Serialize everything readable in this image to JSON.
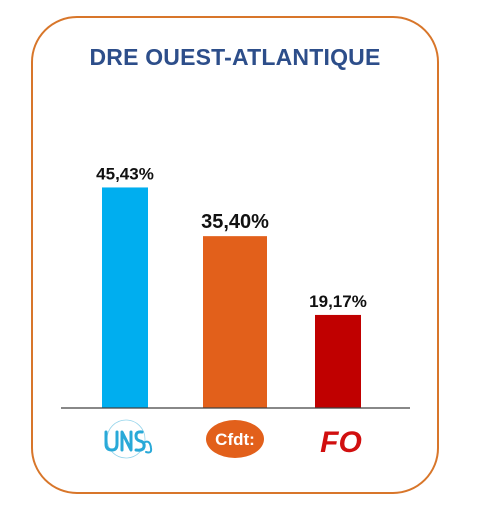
{
  "chart_data": {
    "type": "bar",
    "title": "DRE OUEST-ATLANTIQUE",
    "categories": [
      "UNSA",
      "CFDT",
      "FO"
    ],
    "values": [
      45.43,
      35.4,
      19.17
    ],
    "value_labels": [
      "45,43%",
      "35,40%",
      "19,17%"
    ],
    "colors": [
      "#00aeef",
      "#e2601b",
      "#c00000"
    ],
    "ylim": [
      0,
      55
    ],
    "grid": false,
    "legend": "none"
  },
  "logos": {
    "unsa": "unsa",
    "cfdt": "Cfdt:",
    "fo": "FO"
  }
}
